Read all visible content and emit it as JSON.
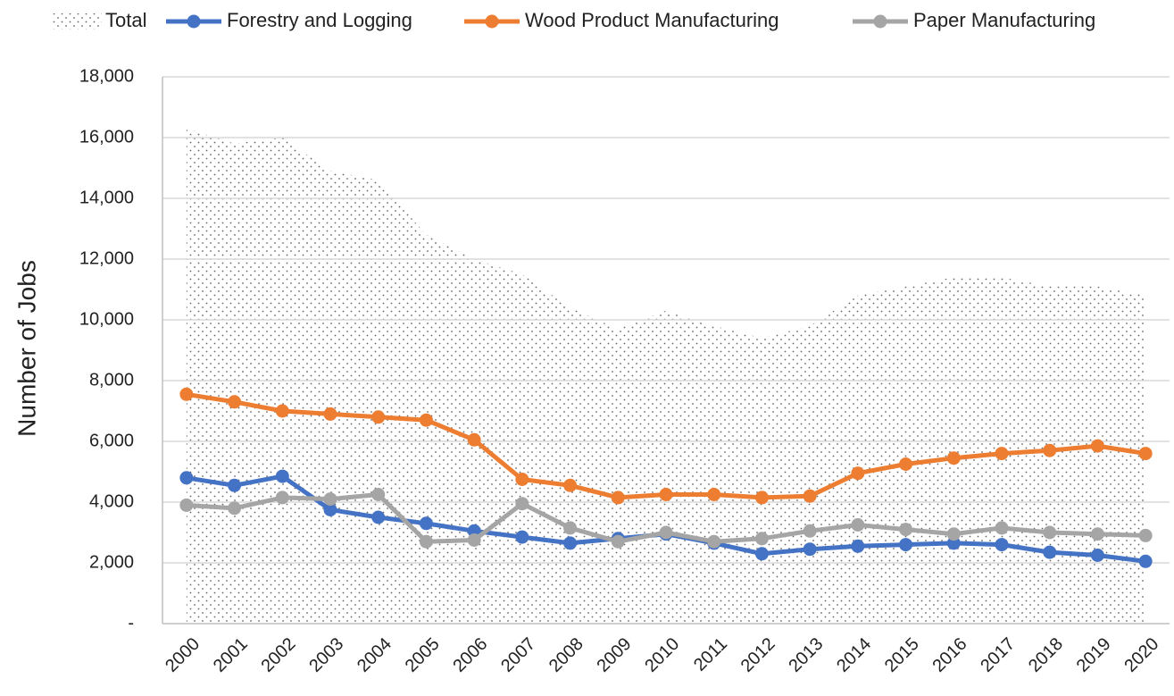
{
  "chart_data": {
    "type": "line",
    "y_axis_label": "Number of Jobs",
    "categories": [
      "2000",
      "2001",
      "2002",
      "2003",
      "2004",
      "2005",
      "2006",
      "2007",
      "2008",
      "2009",
      "2010",
      "2011",
      "2012",
      "2013",
      "2014",
      "2015",
      "2016",
      "2017",
      "2018",
      "2019",
      "2020"
    ],
    "series": [
      {
        "name": "Total",
        "kind": "area",
        "color": "#555555",
        "values": [
          16300,
          15800,
          16000,
          14900,
          14600,
          12800,
          12000,
          11500,
          10400,
          9700,
          10300,
          9800,
          9400,
          9800,
          10800,
          11100,
          11400,
          11400,
          11100,
          11100,
          10800
        ]
      },
      {
        "name": "Forestry and Logging",
        "color": "#4472c4",
        "values": [
          4800,
          4550,
          4850,
          3750,
          3500,
          3300,
          3050,
          2850,
          2650,
          2800,
          2950,
          2650,
          2300,
          2450,
          2550,
          2600,
          2650,
          2600,
          2350,
          2250,
          2050
        ]
      },
      {
        "name": "Wood Product Manufacturing",
        "color": "#ed7d31",
        "values": [
          7550,
          7300,
          7000,
          6900,
          6800,
          6700,
          6050,
          4750,
          4550,
          4150,
          4250,
          4250,
          4150,
          4200,
          4950,
          5250,
          5450,
          5600,
          5700,
          5850,
          5600
        ]
      },
      {
        "name": "Paper Manufacturing",
        "color": "#a5a5a5",
        "values": [
          3900,
          3800,
          4150,
          4100,
          4250,
          2700,
          2750,
          3950,
          3150,
          2700,
          3000,
          2700,
          2800,
          3050,
          3250,
          3100,
          2950,
          3150,
          3000,
          2950,
          2900
        ]
      }
    ],
    "ylim": [
      0,
      18000
    ],
    "yticks": [
      {
        "value": 0,
        "label": "-"
      },
      {
        "value": 2000,
        "label": "2,000"
      },
      {
        "value": 4000,
        "label": "4,000"
      },
      {
        "value": 6000,
        "label": "6,000"
      },
      {
        "value": 8000,
        "label": "8,000"
      },
      {
        "value": 10000,
        "label": "10,000"
      },
      {
        "value": 12000,
        "label": "12,000"
      },
      {
        "value": 14000,
        "label": "14,000"
      },
      {
        "value": 16000,
        "label": "16,000"
      },
      {
        "value": 18000,
        "label": "18,000"
      }
    ],
    "grid": true,
    "legend": "top"
  }
}
